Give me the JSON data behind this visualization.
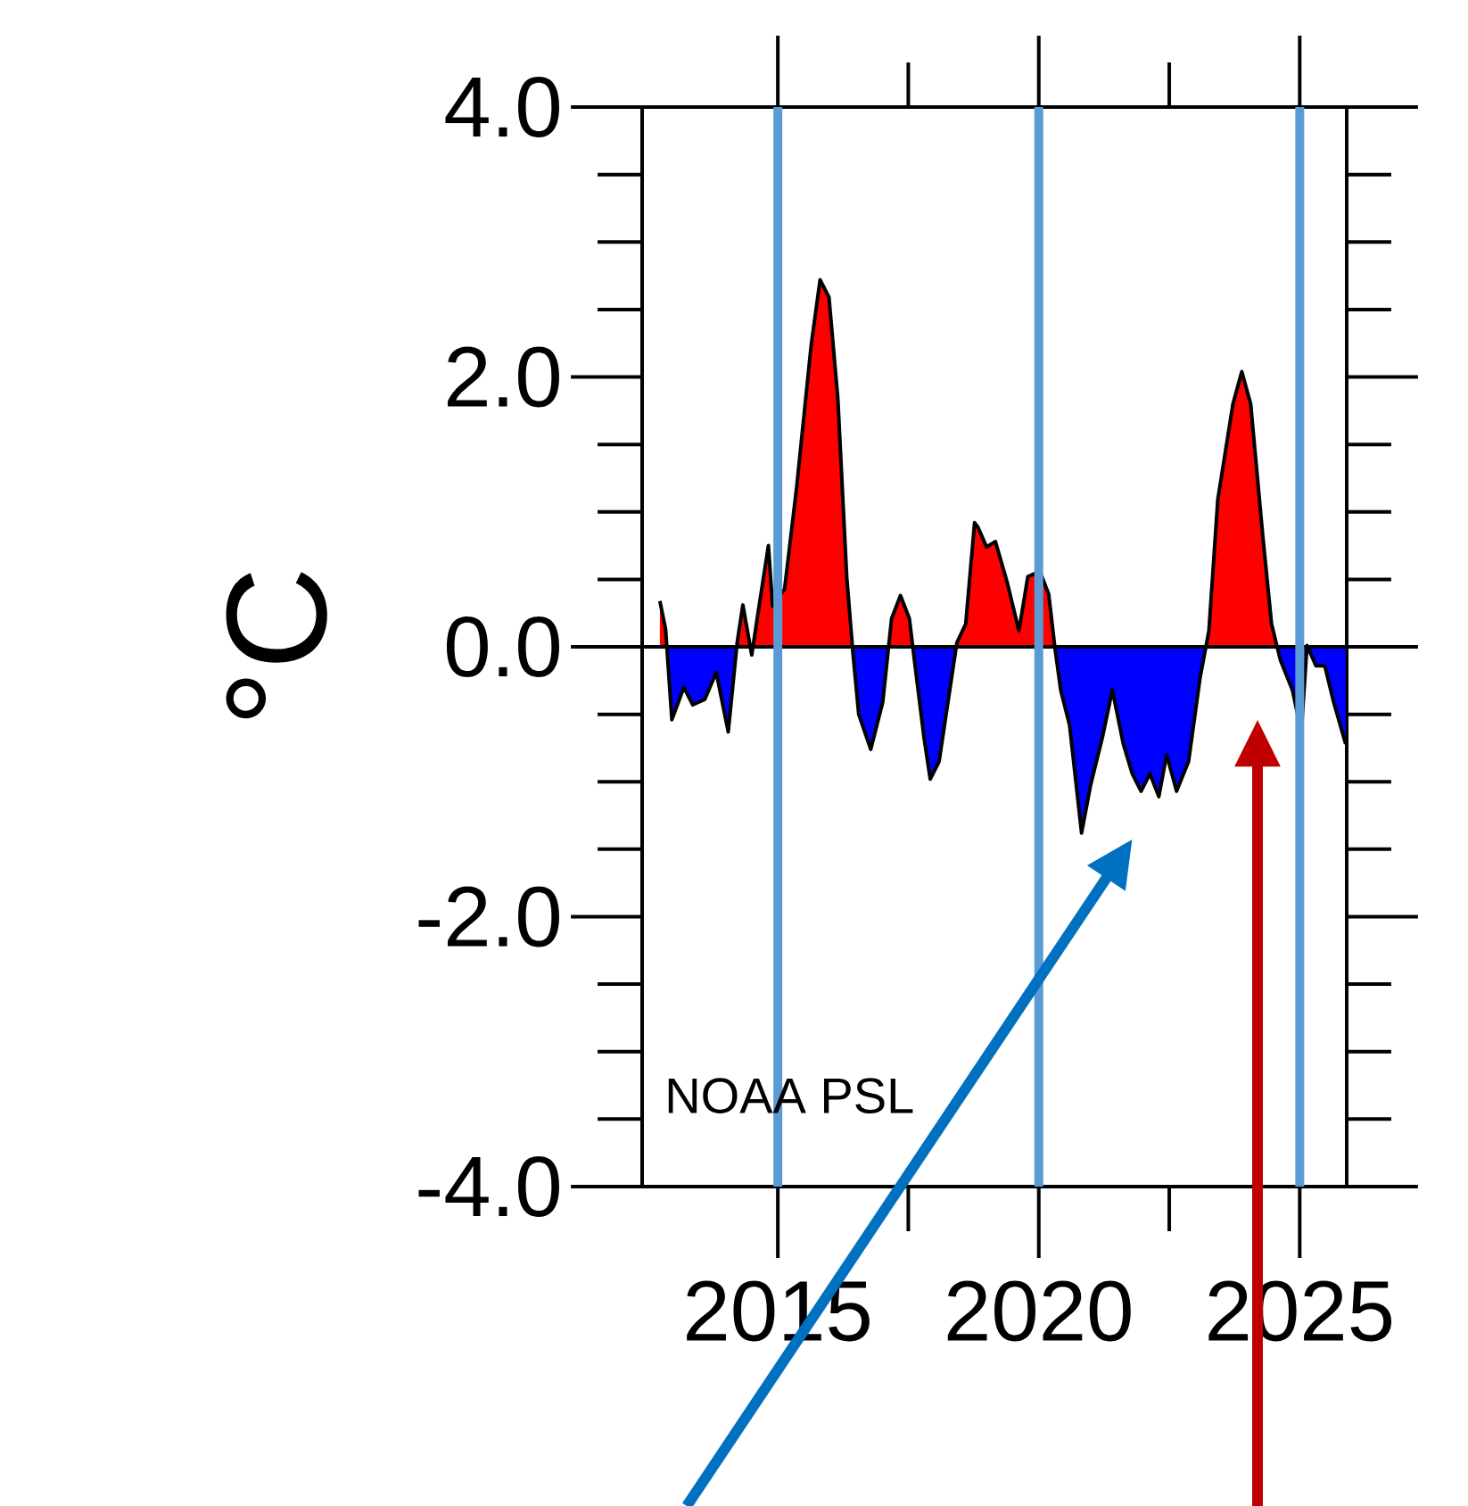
{
  "chart_data": {
    "type": "area",
    "ylabel": "°C",
    "x": [
      2012.74,
      2012.85,
      2012.97,
      2013.2,
      2013.37,
      2013.6,
      2013.82,
      2014.05,
      2014.22,
      2014.33,
      2014.5,
      2014.64,
      2014.82,
      2014.9,
      2015.13,
      2015.36,
      2015.64,
      2015.81,
      2015.98,
      2016.15,
      2016.32,
      2016.44,
      2016.55,
      2016.78,
      2017.01,
      2017.18,
      2017.35,
      2017.52,
      2017.63,
      2017.8,
      2017.92,
      2018.09,
      2018.26,
      2018.43,
      2018.6,
      2018.77,
      2018.83,
      2019.0,
      2019.17,
      2019.4,
      2019.62,
      2019.79,
      2020.02,
      2020.19,
      2020.31,
      2020.42,
      2020.59,
      2020.82,
      2020.99,
      2021.22,
      2021.41,
      2021.62,
      2021.79,
      2021.96,
      2022.13,
      2022.3,
      2022.45,
      2022.64,
      2022.87,
      2023.09,
      2023.26,
      2023.43,
      2023.72,
      2023.89,
      2024.06,
      2024.29,
      2024.46,
      2024.63,
      2024.86,
      2025.03,
      2025.14,
      2025.31,
      2025.48,
      2025.65,
      2025.88
    ],
    "series": [
      {
        "colors": [
          "#ff0000",
          "#ff0000",
          "#0000ff",
          "#0000ff",
          "#0000ff",
          "#0000ff",
          "#0000ff",
          "#0000ff",
          "#ff0000",
          "#ff0000",
          "#0000ff",
          "#ff0000",
          "#ff0000",
          "#ff0000",
          "#ff0000",
          "#ff0000",
          "#ff0000",
          "#ff0000",
          "#ff0000",
          "#ff0000",
          "#ff0000",
          "#0000ff",
          "#0000ff",
          "#0000ff",
          "#0000ff",
          "#ff0000",
          "#ff0000",
          "#ff0000",
          "#0000ff",
          "#0000ff",
          "#0000ff",
          "#0000ff",
          "#0000ff",
          "#ff0000",
          "#ff0000",
          "#ff0000",
          "#ff0000",
          "#ff0000",
          "#ff0000",
          "#ff0000",
          "#ff0000",
          "#ff0000",
          "#ff0000",
          "#ff0000",
          "#0000ff",
          "#0000ff",
          "#0000ff",
          "#0000ff",
          "#0000ff",
          "#0000ff",
          "#0000ff",
          "#0000ff",
          "#0000ff",
          "#0000ff",
          "#0000ff",
          "#0000ff",
          "#0000ff",
          "#0000ff",
          "#0000ff",
          "#0000ff",
          "#ff0000",
          "#ff0000",
          "#ff0000",
          "#ff0000",
          "#ff0000",
          "#ff0000",
          "#ff0000",
          "#0000ff",
          "#0000ff",
          "#0000ff",
          "#ff0000",
          "#0000ff",
          "#0000ff",
          "#0000ff",
          "#0000ff"
        ],
        "values": [
          0.34,
          0.13,
          -0.54,
          -0.3,
          -0.43,
          -0.39,
          -0.19,
          -0.63,
          0.03,
          0.31,
          -0.06,
          0.3,
          0.75,
          0.3,
          0.43,
          1.18,
          2.24,
          2.72,
          2.59,
          1.84,
          0.52,
          -0.05,
          -0.5,
          -0.76,
          -0.41,
          0.21,
          0.38,
          0.21,
          -0.14,
          -0.67,
          -0.98,
          -0.85,
          -0.41,
          0.03,
          0.17,
          0.92,
          0.89,
          0.74,
          0.78,
          0.47,
          0.12,
          0.52,
          0.56,
          0.39,
          -0.01,
          -0.32,
          -0.58,
          -1.38,
          -1.03,
          -0.67,
          -0.32,
          -0.72,
          -0.94,
          -1.07,
          -0.94,
          -1.11,
          -0.8,
          -1.07,
          -0.85,
          -0.23,
          0.12,
          1.09,
          1.8,
          2.04,
          1.8,
          0.83,
          0.17,
          -0.1,
          -0.32,
          -0.63,
          0.01,
          -0.14,
          -0.14,
          -0.41,
          -0.72
        ]
      }
    ],
    "xlim": [
      2012.4,
      2025.9
    ],
    "xticks": [
      2015,
      2020,
      2025
    ],
    "ylim": [
      -4,
      4
    ],
    "yticks": [
      {
        "value": -4,
        "label": "-4.0"
      },
      {
        "value": -2,
        "label": "-2.0"
      },
      {
        "value": 0,
        "label": "0.0"
      },
      {
        "value": 2,
        "label": "2.0"
      },
      {
        "value": 4,
        "label": "4.0"
      }
    ],
    "ref_lines": [
      {
        "axis": "y",
        "value": 0,
        "color": "#000000"
      },
      {
        "axis": "x",
        "value": 2015,
        "color": "#5b9bd5"
      },
      {
        "axis": "x",
        "value": 2020,
        "color": "#5b9bd5"
      },
      {
        "axis": "x",
        "value": 2025,
        "color": "#5b9bd5"
      }
    ],
    "annotations": [
      "NOAA PSL"
    ]
  }
}
